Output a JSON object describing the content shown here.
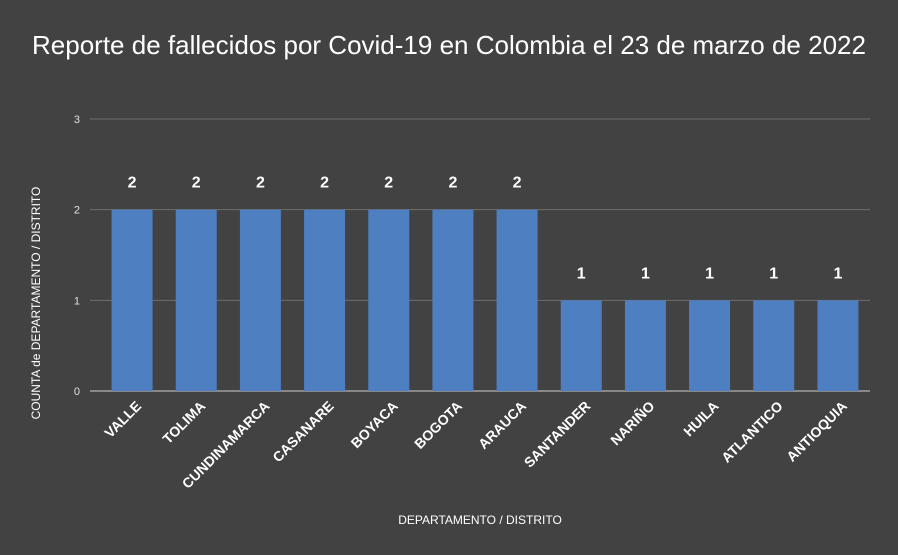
{
  "chart_data": {
    "type": "bar",
    "title": "Reporte de fallecidos por Covid-19 en Colombia el 23 de marzo de 2022",
    "xlabel": "DEPARTAMENTO / DISTRITO",
    "ylabel": "COUNTA de DEPARTAMENTO / DISTRITO",
    "categories": [
      "VALLE",
      "TOLIMA",
      "CUNDINAMARCA",
      "CASANARE",
      "BOYACA",
      "BOGOTA",
      "ARAUCA",
      "SANTANDER",
      "NARIÑO",
      "HUILA",
      "ATLANTICO",
      "ANTIOQUIA"
    ],
    "values": [
      2,
      2,
      2,
      2,
      2,
      2,
      2,
      1,
      1,
      1,
      1,
      1
    ],
    "ylim": [
      0,
      3
    ],
    "yticks": [
      0,
      1,
      2,
      3
    ],
    "grid": true,
    "data_labels": true,
    "colors": {
      "background": "#424242",
      "bar": "#4e7fc0",
      "grid": "#6e6e6e",
      "text": "#ffffff"
    }
  }
}
